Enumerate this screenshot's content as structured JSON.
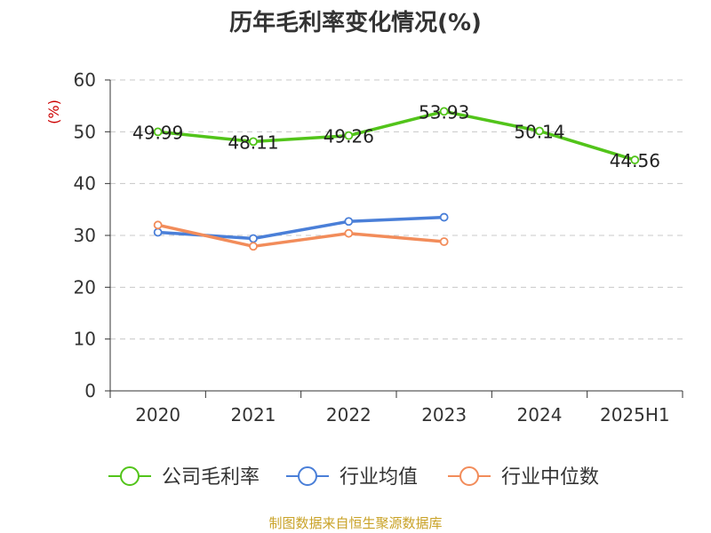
{
  "chart_data": {
    "type": "line",
    "title": "历年毛利率变化情况(%)",
    "ylabel": "(%)",
    "categories": [
      "2020",
      "2021",
      "2022",
      "2023",
      "2024",
      "2025H1"
    ],
    "ylim": [
      0,
      60
    ],
    "yticks": [
      0,
      10,
      20,
      30,
      40,
      50,
      60
    ],
    "grid": true,
    "legend_position": "bottom",
    "series": [
      {
        "name": "公司毛利率",
        "color": "#52c41a",
        "values": [
          49.99,
          48.11,
          49.26,
          53.93,
          50.14,
          44.56
        ],
        "labels": [
          "49.99",
          "48.11",
          "49.26",
          "53.93",
          "50.14",
          "44.56"
        ],
        "show_labels": true
      },
      {
        "name": "行业均值",
        "color": "#4a7fd8",
        "values": [
          30.6,
          29.4,
          32.7,
          33.5,
          null,
          null
        ],
        "show_labels": false
      },
      {
        "name": "行业中位数",
        "color": "#f28c5a",
        "values": [
          32.0,
          27.9,
          30.4,
          28.8,
          null,
          null
        ],
        "show_labels": false
      }
    ]
  },
  "footer": {
    "source": "制图数据来自恒生聚源数据库"
  }
}
